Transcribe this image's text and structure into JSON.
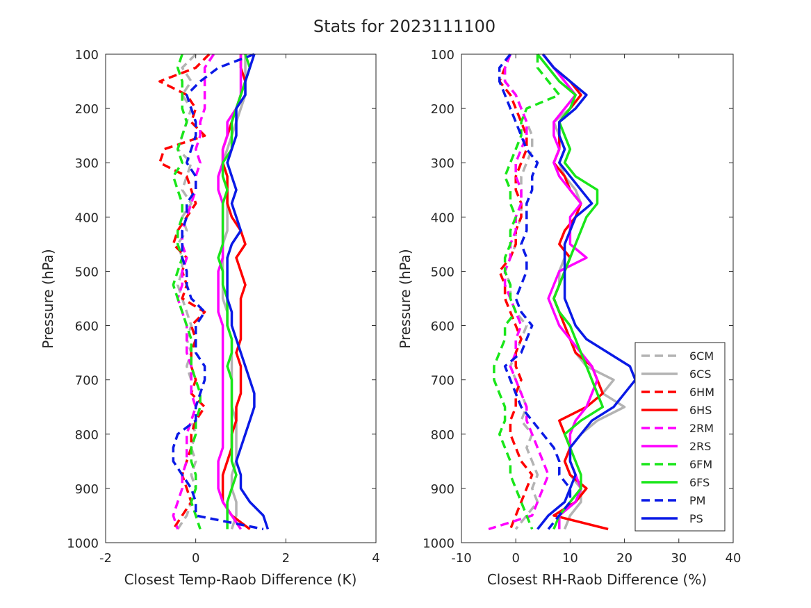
{
  "title": "Stats for 2023111100",
  "colors": {
    "6C": "#b3b3b3",
    "6H": "#ff0000",
    "2R": "#ff00ff",
    "6F": "#19e619",
    "P": "#0a1ae6"
  },
  "legend": {
    "placement": "lower-right of right panel",
    "entries": [
      {
        "label": "6CM",
        "color": "#b3b3b3",
        "style": "dashed"
      },
      {
        "label": "6CS",
        "color": "#b3b3b3",
        "style": "solid"
      },
      {
        "label": "6HM",
        "color": "#ff0000",
        "style": "dashed"
      },
      {
        "label": "6HS",
        "color": "#ff0000",
        "style": "solid"
      },
      {
        "label": "2RM",
        "color": "#ff00ff",
        "style": "dashed"
      },
      {
        "label": "2RS",
        "color": "#ff00ff",
        "style": "solid"
      },
      {
        "label": "6FM",
        "color": "#19e619",
        "style": "dashed"
      },
      {
        "label": "6FS",
        "color": "#19e619",
        "style": "solid"
      },
      {
        "label": "PM",
        "color": "#0a1ae6",
        "style": "dashed"
      },
      {
        "label": "PS",
        "color": "#0a1ae6",
        "style": "solid"
      }
    ]
  },
  "chart_data": [
    {
      "type": "line",
      "xlabel": "Closest Temp-Raob Difference (K)",
      "ylabel": "Pressure (hPa)",
      "xlim": [
        -2,
        4
      ],
      "ylim": [
        100,
        1000
      ],
      "y_reversed": true,
      "grid": false,
      "xticks": [
        "-2",
        "0",
        "2",
        "4"
      ],
      "yticks": [
        "100",
        "200",
        "300",
        "400",
        "500",
        "600",
        "700",
        "800",
        "900",
        "1000"
      ],
      "pressure": [
        100,
        125,
        150,
        175,
        200,
        225,
        250,
        275,
        300,
        325,
        350,
        375,
        400,
        425,
        450,
        475,
        500,
        525,
        550,
        575,
        600,
        625,
        650,
        675,
        700,
        725,
        750,
        775,
        800,
        825,
        850,
        875,
        900,
        925,
        950,
        975
      ],
      "series": [
        {
          "name": "6CM",
          "values": [
            0.0,
            -0.3,
            -0.1,
            -0.3,
            -0.1,
            -0.2,
            -0.3,
            -0.4,
            -0.1,
            -0.2,
            -0.3,
            -0.1,
            -0.3,
            -0.2,
            -0.4,
            -0.3,
            -0.3,
            -0.4,
            -0.3,
            -0.2,
            -0.1,
            -0.2,
            -0.1,
            -0.2,
            -0.1,
            -0.1,
            0.0,
            -0.1,
            0.0,
            -0.1,
            0.0,
            -0.1,
            0.0,
            -0.1,
            -0.2,
            -0.4
          ]
        },
        {
          "name": "6CS",
          "values": [
            1.1,
            1.1,
            1.1,
            1.1,
            1.0,
            0.9,
            0.8,
            0.7,
            0.6,
            0.6,
            0.7,
            0.7,
            0.7,
            0.7,
            0.6,
            0.6,
            0.6,
            0.6,
            0.6,
            0.7,
            0.7,
            0.8,
            0.8,
            0.8,
            0.8,
            0.8,
            0.8,
            0.9,
            0.9,
            0.9,
            0.9,
            0.8,
            0.8,
            0.9,
            0.9,
            0.8
          ]
        },
        {
          "name": "6HM",
          "values": [
            0.3,
            0.0,
            -0.8,
            -0.2,
            0.0,
            -0.1,
            0.2,
            -0.7,
            -0.8,
            -0.2,
            -0.1,
            0.0,
            -0.2,
            -0.4,
            -0.5,
            -0.2,
            -0.3,
            -0.2,
            -0.3,
            0.2,
            -0.1,
            0.0,
            -0.1,
            -0.1,
            0.0,
            -0.1,
            0.2,
            0.0,
            -0.1,
            -0.1,
            -0.2,
            -0.3,
            -0.2,
            -0.1,
            -0.3,
            -0.5
          ]
        },
        {
          "name": "6HS",
          "values": [
            1.0,
            1.0,
            1.1,
            1.0,
            0.9,
            0.8,
            0.7,
            0.6,
            0.6,
            0.7,
            0.7,
            0.7,
            0.8,
            1.0,
            1.1,
            0.9,
            1.0,
            1.1,
            1.0,
            1.0,
            1.0,
            1.0,
            0.9,
            1.0,
            1.0,
            1.0,
            0.9,
            0.9,
            0.8,
            0.8,
            0.7,
            0.6,
            0.6,
            0.6,
            0.8,
            1.2
          ]
        },
        {
          "name": "2RM",
          "values": [
            0.4,
            0.2,
            0.2,
            0.2,
            0.2,
            0.1,
            0.1,
            0.0,
            0.1,
            0.0,
            0.0,
            -0.1,
            -0.2,
            -0.3,
            -0.3,
            -0.2,
            -0.3,
            -0.3,
            -0.4,
            -0.3,
            -0.2,
            -0.2,
            -0.2,
            -0.1,
            -0.1,
            -0.1,
            0.0,
            -0.1,
            -0.2,
            -0.2,
            -0.2,
            -0.3,
            -0.3,
            -0.4,
            -0.5,
            -0.4
          ]
        },
        {
          "name": "2RS",
          "values": [
            1.0,
            1.0,
            1.0,
            1.0,
            0.9,
            0.7,
            0.7,
            0.6,
            0.6,
            0.5,
            0.5,
            0.6,
            0.6,
            0.6,
            0.6,
            0.6,
            0.5,
            0.5,
            0.5,
            0.5,
            0.6,
            0.6,
            0.6,
            0.6,
            0.6,
            0.6,
            0.6,
            0.6,
            0.6,
            0.6,
            0.5,
            0.5,
            0.5,
            0.6,
            0.8,
            1.0
          ]
        },
        {
          "name": "6FM",
          "values": [
            -0.3,
            -0.4,
            -0.3,
            -0.3,
            -0.3,
            -0.2,
            -0.3,
            -0.4,
            -0.3,
            -0.5,
            -0.4,
            -0.3,
            -0.3,
            -0.4,
            -0.4,
            -0.3,
            -0.4,
            -0.5,
            -0.4,
            -0.3,
            -0.2,
            -0.1,
            -0.1,
            -0.1,
            0.0,
            0.1,
            0.1,
            0.0,
            0.0,
            -0.1,
            -0.1,
            0.0,
            0.0,
            -0.1,
            0.0,
            0.1
          ]
        },
        {
          "name": "6FS",
          "values": [
            1.1,
            1.2,
            1.1,
            1.0,
            0.9,
            0.8,
            0.8,
            0.8,
            0.6,
            0.6,
            0.7,
            0.6,
            0.6,
            0.6,
            0.6,
            0.5,
            0.6,
            0.6,
            0.7,
            0.7,
            0.7,
            0.8,
            0.8,
            0.7,
            0.8,
            0.8,
            0.8,
            0.8,
            0.8,
            0.8,
            0.8,
            0.9,
            0.8,
            0.7,
            0.7,
            0.7
          ]
        },
        {
          "name": "PM",
          "values": [
            1.3,
            0.5,
            0.1,
            -0.2,
            -0.1,
            0.0,
            0.0,
            -0.1,
            -0.2,
            0.0,
            0.0,
            -0.2,
            -0.2,
            -0.3,
            -0.3,
            -0.3,
            -0.2,
            -0.2,
            -0.1,
            0.2,
            0.0,
            0.0,
            0.0,
            0.2,
            0.2,
            0.1,
            0.0,
            0.0,
            -0.4,
            -0.5,
            -0.5,
            -0.3,
            -0.1,
            0.0,
            0.0,
            1.5
          ]
        },
        {
          "name": "PS",
          "values": [
            1.3,
            1.2,
            1.1,
            1.1,
            0.9,
            0.9,
            0.9,
            0.8,
            0.7,
            0.8,
            0.9,
            0.8,
            0.9,
            1.0,
            0.8,
            0.7,
            0.7,
            0.7,
            0.7,
            0.8,
            0.8,
            0.9,
            1.0,
            1.1,
            1.2,
            1.3,
            1.3,
            1.2,
            1.1,
            1.0,
            0.9,
            1.0,
            1.0,
            1.2,
            1.5,
            1.6
          ]
        }
      ]
    },
    {
      "type": "line",
      "xlabel": "Closest RH-Raob Difference (%)",
      "ylabel": "Pressure (hPa)",
      "xlim": [
        -10,
        40
      ],
      "ylim": [
        100,
        1000
      ],
      "y_reversed": true,
      "grid": false,
      "xticks": [
        "-10",
        "0",
        "10",
        "20",
        "30",
        "40"
      ],
      "yticks": [
        "100",
        "200",
        "300",
        "400",
        "500",
        "600",
        "700",
        "800",
        "900",
        "1000"
      ],
      "pressure": [
        100,
        125,
        150,
        175,
        200,
        225,
        250,
        275,
        300,
        325,
        350,
        375,
        400,
        425,
        450,
        475,
        500,
        525,
        550,
        575,
        600,
        625,
        650,
        675,
        700,
        725,
        750,
        775,
        800,
        825,
        850,
        875,
        900,
        925,
        950,
        975
      ],
      "series": [
        {
          "name": "6CM",
          "values": [
            -1,
            -2,
            -2,
            0,
            1,
            2,
            3,
            3,
            2,
            1,
            1,
            1,
            1,
            0,
            0,
            -1,
            -2,
            -1,
            -1,
            0,
            2,
            1,
            0,
            -1,
            0,
            1,
            2,
            1,
            3,
            2,
            3,
            4,
            3,
            4,
            2,
            0
          ]
        },
        {
          "name": "6CS",
          "values": [
            5,
            7,
            10,
            12,
            10,
            7,
            8,
            9,
            8,
            9,
            11,
            12,
            11,
            10,
            9,
            9,
            8,
            8,
            7,
            8,
            9,
            10,
            11,
            13,
            18,
            16,
            20,
            15,
            12,
            10,
            9,
            10,
            12,
            12,
            10,
            9
          ]
        },
        {
          "name": "6HM",
          "values": [
            -1,
            -2,
            -3,
            -1,
            0,
            1,
            2,
            2,
            1,
            0,
            0,
            1,
            1,
            0,
            0,
            -1,
            -3,
            -2,
            -2,
            -1,
            0,
            1,
            0,
            0,
            1,
            0,
            0,
            -1,
            -1,
            0,
            1,
            3,
            2,
            1,
            0,
            -1
          ]
        },
        {
          "name": "6HS",
          "values": [
            5,
            7,
            10,
            12,
            10,
            8,
            8,
            8,
            7,
            9,
            10,
            12,
            11,
            9,
            8,
            10,
            9,
            8,
            7,
            8,
            9,
            10,
            11,
            14,
            15,
            16,
            13,
            8,
            9,
            10,
            9,
            10,
            13,
            11,
            7,
            17
          ]
        },
        {
          "name": "2RM",
          "values": [
            -1,
            -2,
            -2,
            0,
            1,
            2,
            2,
            1,
            0,
            0,
            1,
            1,
            0,
            0,
            -1,
            -1,
            -2,
            -2,
            -1,
            0,
            1,
            0,
            0,
            -1,
            0,
            1,
            2,
            2,
            3,
            4,
            5,
            6,
            5,
            4,
            3,
            -5
          ]
        },
        {
          "name": "2RS",
          "values": [
            5,
            7,
            9,
            11,
            9,
            7,
            7,
            8,
            7,
            8,
            10,
            12,
            10,
            10,
            10,
            13,
            8,
            7,
            6,
            7,
            8,
            10,
            12,
            14,
            15,
            14,
            13,
            11,
            10,
            10,
            10,
            11,
            12,
            11,
            8,
            8
          ]
        },
        {
          "name": "6FM",
          "values": [
            4,
            4,
            6,
            8,
            2,
            1,
            1,
            0,
            -1,
            -2,
            -1,
            -1,
            0,
            -1,
            -1,
            -2,
            -2,
            -1,
            -1,
            0,
            -2,
            -2,
            -3,
            -4,
            -4,
            -3,
            -2,
            -2,
            -3,
            -2,
            -1,
            -1,
            0,
            1,
            2,
            3
          ]
        },
        {
          "name": "6FS",
          "values": [
            4,
            6,
            8,
            11,
            10,
            8,
            9,
            10,
            9,
            11,
            15,
            15,
            13,
            12,
            11,
            10,
            9,
            8,
            7,
            8,
            10,
            11,
            12,
            13,
            14,
            15,
            16,
            12,
            9,
            10,
            11,
            12,
            12,
            10,
            8,
            7
          ]
        },
        {
          "name": "PM",
          "values": [
            -1,
            -3,
            -3,
            -2,
            -1,
            0,
            1,
            2,
            4,
            3,
            3,
            2,
            2,
            2,
            1,
            2,
            2,
            1,
            0,
            1,
            3,
            2,
            1,
            -2,
            -1,
            0,
            1,
            3,
            5,
            7,
            8,
            8,
            10,
            10,
            8,
            6
          ]
        },
        {
          "name": "PS",
          "values": [
            5,
            7,
            10,
            13,
            11,
            8,
            8,
            9,
            8,
            10,
            12,
            14,
            11,
            10,
            9,
            9,
            9,
            9,
            9,
            10,
            11,
            13,
            17,
            21,
            22,
            20,
            18,
            14,
            12,
            10,
            10,
            11,
            10,
            9,
            6,
            4
          ]
        }
      ]
    }
  ]
}
